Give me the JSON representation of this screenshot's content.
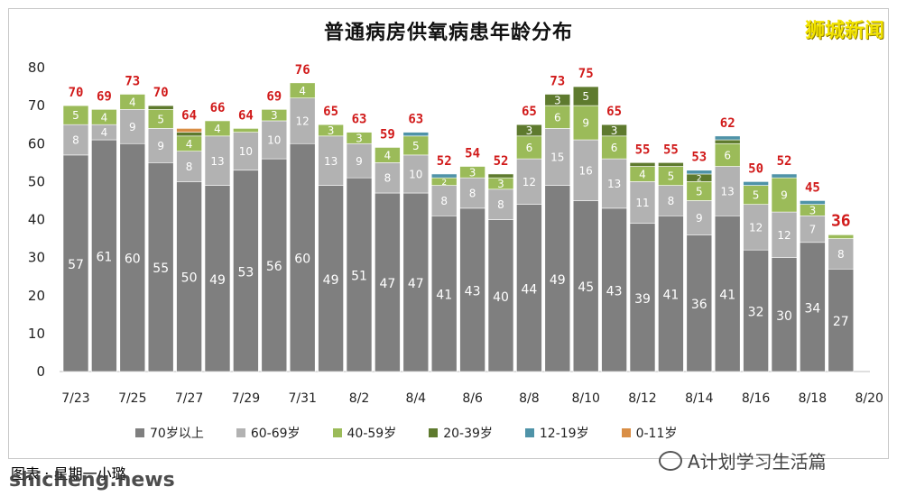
{
  "title": "普通病房供氧病患年龄分布",
  "brand": "狮城新闻",
  "footer_left": "图表 : 星期一小璐",
  "watermark": "shicheng.news",
  "wechat_label": "A计划学习生活篇",
  "colors": {
    "s70": "#7f7f7f",
    "s60": "#b2b2b2",
    "s40": "#9bbb59",
    "s20": "#5e7a2e",
    "s12": "#4f93a8",
    "s0": "#d98e45",
    "total": "#d11b1b"
  },
  "chart_data": {
    "type": "bar",
    "stacked": true,
    "title": "普通病房供氧病患年龄分布",
    "ylim": [
      0,
      80
    ],
    "yticks": [
      0,
      10,
      20,
      30,
      40,
      50,
      60,
      70,
      80
    ],
    "categories": [
      "7/23",
      "7/24",
      "7/25",
      "7/26",
      "7/27",
      "7/28",
      "7/29",
      "7/30",
      "7/31",
      "8/1",
      "8/2",
      "8/3",
      "8/4",
      "8/5",
      "8/6",
      "8/7",
      "8/8",
      "8/9",
      "8/10",
      "8/11",
      "8/12",
      "8/13",
      "8/14",
      "8/15",
      "8/16",
      "8/17",
      "8/18",
      "8/19"
    ],
    "xtick_labels": [
      "7/23",
      "7/25",
      "7/27",
      "7/29",
      "7/31",
      "8/2",
      "8/4",
      "8/6",
      "8/8",
      "8/10",
      "8/12",
      "8/14",
      "8/16",
      "8/18",
      "8/20"
    ],
    "legend_placement": "bottom",
    "series": [
      {
        "name": "70岁以上",
        "values": [
          57,
          61,
          60,
          55,
          50,
          49,
          53,
          56,
          60,
          49,
          51,
          47,
          47,
          41,
          43,
          40,
          44,
          49,
          45,
          43,
          39,
          41,
          36,
          41,
          32,
          30,
          34,
          27
        ]
      },
      {
        "name": "60-69岁",
        "values": [
          8,
          4,
          9,
          9,
          8,
          13,
          10,
          10,
          12,
          13,
          9,
          8,
          10,
          8,
          8,
          8,
          12,
          15,
          16,
          13,
          11,
          8,
          9,
          13,
          12,
          12,
          7,
          8
        ]
      },
      {
        "name": "40-59岁",
        "values": [
          5,
          4,
          4,
          5,
          4,
          4,
          1,
          3,
          4,
          3,
          3,
          4,
          5,
          2,
          3,
          3,
          6,
          6,
          9,
          6,
          4,
          5,
          5,
          6,
          5,
          9,
          3,
          1
        ]
      },
      {
        "name": "20-39岁",
        "values": [
          0,
          0,
          0,
          1,
          1,
          0,
          0,
          0,
          0,
          0,
          0,
          0,
          0,
          0,
          0,
          1,
          3,
          3,
          5,
          3,
          1,
          1,
          2,
          1,
          0,
          0,
          0,
          0
        ]
      },
      {
        "name": "12-19岁",
        "values": [
          0,
          0,
          0,
          0,
          0,
          0,
          0,
          0,
          0,
          0,
          0,
          0,
          1,
          1,
          0,
          0,
          0,
          0,
          0,
          0,
          0,
          0,
          1,
          1,
          1,
          1,
          1,
          0
        ]
      },
      {
        "name": "0-11岁",
        "values": [
          0,
          0,
          0,
          0,
          1,
          0,
          0,
          0,
          0,
          0,
          0,
          0,
          0,
          0,
          0,
          0,
          0,
          0,
          0,
          0,
          0,
          0,
          0,
          0,
          0,
          0,
          0,
          0
        ]
      }
    ],
    "totals": [
      70,
      69,
      73,
      70,
      64,
      66,
      64,
      69,
      76,
      65,
      63,
      59,
      63,
      52,
      54,
      52,
      65,
      73,
      75,
      65,
      55,
      55,
      53,
      62,
      50,
      52,
      45,
      36
    ]
  }
}
